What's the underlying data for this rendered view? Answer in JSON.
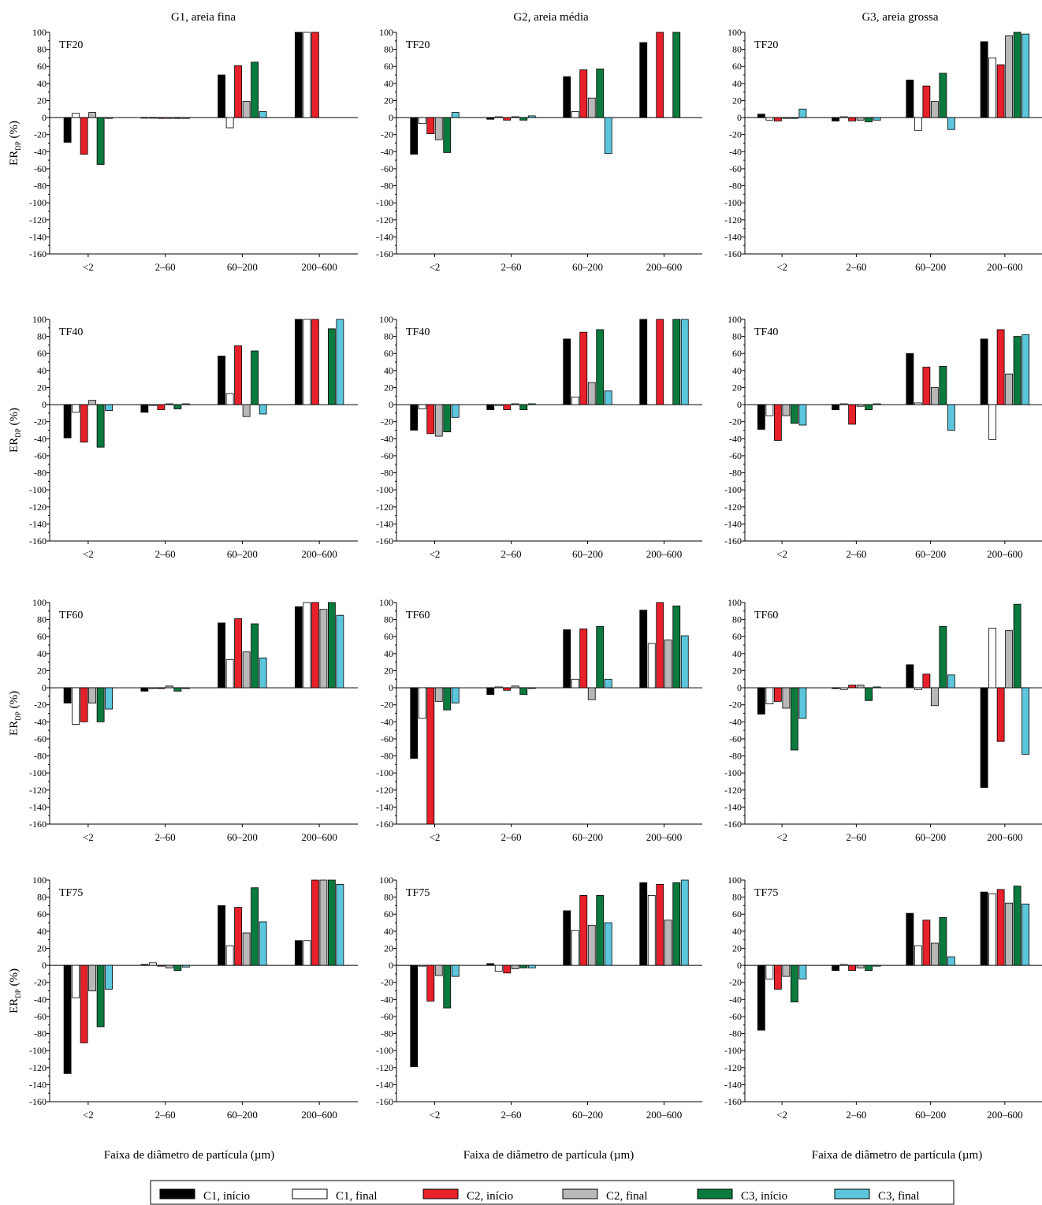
{
  "figure": {
    "column_titles": [
      "G1, areia fina",
      "G2, areia média",
      "G3, areia grossa"
    ],
    "xlabel": "Faixa de diâmetro de partícula (µm)",
    "ylabel_main": "ER",
    "ylabel_sub": "DP",
    "ylabel_unit": "(%)"
  },
  "legend": [
    {
      "label": "C1, início",
      "color": "#000000"
    },
    {
      "label": "C1, final",
      "color": "#ffffff"
    },
    {
      "label": "C2, início",
      "color": "#e8202a"
    },
    {
      "label": "C2, final",
      "color": "#b8b8b8"
    },
    {
      "label": "C3, início",
      "color": "#0a7a3e"
    },
    {
      "label": "C3, final",
      "color": "#5cc6dc"
    }
  ],
  "chart_data": [
    {
      "type": "bar",
      "title": "TF20",
      "column": "G1, areia fina",
      "categories": [
        "<2",
        "2–60",
        "60–200",
        "200–600"
      ],
      "ylim": [
        -160,
        100
      ],
      "series": [
        {
          "name": "C1, início",
          "values": [
            -29,
            0,
            50,
            100
          ]
        },
        {
          "name": "C1, final",
          "values": [
            5,
            0,
            -12,
            100
          ]
        },
        {
          "name": "C2, início",
          "values": [
            -43,
            -1,
            61,
            100
          ]
        },
        {
          "name": "C2, final",
          "values": [
            6,
            -1,
            19,
            null
          ]
        },
        {
          "name": "C3, início",
          "values": [
            -55,
            -1,
            65,
            null
          ]
        },
        {
          "name": "C3, final",
          "values": [
            -1,
            -1,
            7,
            null
          ]
        }
      ]
    },
    {
      "type": "bar",
      "title": "TF20",
      "column": "G2, areia média",
      "categories": [
        "<2",
        "2–60",
        "60–200",
        "200–600"
      ],
      "ylim": [
        -160,
        100
      ],
      "series": [
        {
          "name": "C1, início",
          "values": [
            -43,
            -2,
            48,
            88
          ]
        },
        {
          "name": "C1, final",
          "values": [
            -7,
            1,
            7,
            null
          ]
        },
        {
          "name": "C2, início",
          "values": [
            -19,
            -3,
            56,
            100
          ]
        },
        {
          "name": "C2, final",
          "values": [
            -26,
            1,
            23,
            null
          ]
        },
        {
          "name": "C3, início",
          "values": [
            -41,
            -3,
            57,
            100
          ]
        },
        {
          "name": "C3, final",
          "values": [
            6,
            2,
            -42,
            null
          ]
        }
      ]
    },
    {
      "type": "bar",
      "title": "TF20",
      "column": "G3, areia grossa",
      "categories": [
        "<2",
        "2–60",
        "60–200",
        "200–600"
      ],
      "ylim": [
        -160,
        100
      ],
      "series": [
        {
          "name": "C1, início",
          "values": [
            4,
            -4,
            44,
            89
          ]
        },
        {
          "name": "C1, final",
          "values": [
            -3,
            1,
            -15,
            70
          ]
        },
        {
          "name": "C2, início",
          "values": [
            -4,
            -4,
            37,
            62
          ]
        },
        {
          "name": "C2, final",
          "values": [
            -1,
            -3,
            19,
            96
          ]
        },
        {
          "name": "C3, início",
          "values": [
            -1,
            -5,
            52,
            100
          ]
        },
        {
          "name": "C3, final",
          "values": [
            10,
            -3,
            -14,
            98
          ]
        }
      ]
    },
    {
      "type": "bar",
      "title": "TF40",
      "column": "G1, areia fina",
      "categories": [
        "<2",
        "2–60",
        "60–200",
        "200–600"
      ],
      "ylim": [
        -160,
        100
      ],
      "series": [
        {
          "name": "C1, início",
          "values": [
            -39,
            -9,
            57,
            100
          ]
        },
        {
          "name": "C1, final",
          "values": [
            -9,
            -1,
            13,
            100
          ]
        },
        {
          "name": "C2, início",
          "values": [
            -44,
            -6,
            69,
            100
          ]
        },
        {
          "name": "C2, final",
          "values": [
            5,
            1,
            -14,
            null
          ]
        },
        {
          "name": "C3, início",
          "values": [
            -50,
            -5,
            63,
            89
          ]
        },
        {
          "name": "C3, final",
          "values": [
            -7,
            1,
            -11,
            100
          ]
        }
      ]
    },
    {
      "type": "bar",
      "title": "TF40",
      "column": "G2, areia média",
      "categories": [
        "<2",
        "2–60",
        "60–200",
        "200–600"
      ],
      "ylim": [
        -160,
        100
      ],
      "series": [
        {
          "name": "C1, início",
          "values": [
            -30,
            -6,
            77,
            100
          ]
        },
        {
          "name": "C1, final",
          "values": [
            -5,
            -1,
            9,
            null
          ]
        },
        {
          "name": "C2, início",
          "values": [
            -34,
            -6,
            85,
            100
          ]
        },
        {
          "name": "C2, final",
          "values": [
            -37,
            1,
            26,
            null
          ]
        },
        {
          "name": "C3, início",
          "values": [
            -32,
            -6,
            88,
            100
          ]
        },
        {
          "name": "C3, final",
          "values": [
            -15,
            1,
            16,
            100
          ]
        }
      ]
    },
    {
      "type": "bar",
      "title": "TF40",
      "column": "G3, areia grossa",
      "categories": [
        "<2",
        "2–60",
        "60–200",
        "200–600"
      ],
      "ylim": [
        -160,
        100
      ],
      "series": [
        {
          "name": "C1, início",
          "values": [
            -29,
            -6,
            60,
            77
          ]
        },
        {
          "name": "C1, final",
          "values": [
            -13,
            1,
            2,
            -41
          ]
        },
        {
          "name": "C2, início",
          "values": [
            -42,
            -23,
            44,
            88
          ]
        },
        {
          "name": "C2, final",
          "values": [
            -13,
            -2,
            20,
            36
          ]
        },
        {
          "name": "C3, início",
          "values": [
            -22,
            -6,
            45,
            80
          ]
        },
        {
          "name": "C3, final",
          "values": [
            -24,
            1,
            -30,
            82
          ]
        }
      ]
    },
    {
      "type": "bar",
      "title": "TF60",
      "column": "G1, areia fina",
      "categories": [
        "<2",
        "2–60",
        "60–200",
        "200–600"
      ],
      "ylim": [
        -160,
        100
      ],
      "series": [
        {
          "name": "C1, início",
          "values": [
            -18,
            -4,
            76,
            95
          ]
        },
        {
          "name": "C1, final",
          "values": [
            -43,
            -1,
            33,
            100
          ]
        },
        {
          "name": "C2, início",
          "values": [
            -40,
            -1,
            81,
            100
          ]
        },
        {
          "name": "C2, final",
          "values": [
            -18,
            2,
            42,
            92
          ]
        },
        {
          "name": "C3, início",
          "values": [
            -40,
            -4,
            75,
            100
          ]
        },
        {
          "name": "C3, final",
          "values": [
            -25,
            -1,
            35,
            85
          ]
        }
      ]
    },
    {
      "type": "bar",
      "title": "TF60",
      "column": "G2, areia média",
      "categories": [
        "<2",
        "2–60",
        "60–200",
        "200–600"
      ],
      "ylim": [
        -160,
        100
      ],
      "series": [
        {
          "name": "C1, início",
          "values": [
            -83,
            -8,
            68,
            91
          ]
        },
        {
          "name": "C1, final",
          "values": [
            -36,
            1,
            10,
            52
          ]
        },
        {
          "name": "C2, início",
          "values": [
            -160,
            -3,
            69,
            100
          ]
        },
        {
          "name": "C2, final",
          "values": [
            -16,
            2,
            -14,
            56
          ]
        },
        {
          "name": "C3, início",
          "values": [
            -26,
            -8,
            72,
            96
          ]
        },
        {
          "name": "C3, final",
          "values": [
            -18,
            -1,
            10,
            61
          ]
        }
      ]
    },
    {
      "type": "bar",
      "title": "TF60",
      "column": "G3, areia grossa",
      "categories": [
        "<2",
        "2–60",
        "60–200",
        "200–600"
      ],
      "ylim": [
        -160,
        100
      ],
      "series": [
        {
          "name": "C1, início",
          "values": [
            -31,
            -1,
            27,
            -117
          ]
        },
        {
          "name": "C1, final",
          "values": [
            -19,
            -2,
            -2,
            70
          ]
        },
        {
          "name": "C2, início",
          "values": [
            -16,
            3,
            16,
            -63
          ]
        },
        {
          "name": "C2, final",
          "values": [
            -24,
            3,
            -21,
            67
          ]
        },
        {
          "name": "C3, início",
          "values": [
            -73,
            -15,
            72,
            98
          ]
        },
        {
          "name": "C3, final",
          "values": [
            -36,
            1,
            15,
            -78
          ]
        }
      ]
    },
    {
      "type": "bar",
      "title": "TF75",
      "column": "G1, areia fina",
      "categories": [
        "<2",
        "2–60",
        "60–200",
        "200–600"
      ],
      "ylim": [
        -160,
        100
      ],
      "series": [
        {
          "name": "C1, início",
          "values": [
            -127,
            1,
            70,
            29
          ]
        },
        {
          "name": "C1, final",
          "values": [
            -38,
            3,
            23,
            29
          ]
        },
        {
          "name": "C2, início",
          "values": [
            -91,
            -1,
            68,
            100
          ]
        },
        {
          "name": "C2, final",
          "values": [
            -30,
            -3,
            38,
            100
          ]
        },
        {
          "name": "C3, início",
          "values": [
            -72,
            -6,
            91,
            100
          ]
        },
        {
          "name": "C3, final",
          "values": [
            -28,
            -2,
            51,
            95
          ]
        }
      ]
    },
    {
      "type": "bar",
      "title": "TF75",
      "column": "G2, areia média",
      "categories": [
        "<2",
        "2–60",
        "60–200",
        "200–600"
      ],
      "ylim": [
        -160,
        100
      ],
      "series": [
        {
          "name": "C1, início",
          "values": [
            -119,
            2,
            64,
            97
          ]
        },
        {
          "name": "C1, final",
          "values": [
            -1,
            -7,
            41,
            82
          ]
        },
        {
          "name": "C2, início",
          "values": [
            -42,
            -9,
            82,
            95
          ]
        },
        {
          "name": "C2, final",
          "values": [
            -12,
            -4,
            47,
            53
          ]
        },
        {
          "name": "C3, início",
          "values": [
            -50,
            -3,
            82,
            97
          ]
        },
        {
          "name": "C3, final",
          "values": [
            -13,
            -3,
            50,
            100
          ]
        }
      ]
    },
    {
      "type": "bar",
      "title": "TF75",
      "column": "G3, areia grossa",
      "categories": [
        "<2",
        "2–60",
        "60–200",
        "200–600"
      ],
      "ylim": [
        -160,
        100
      ],
      "series": [
        {
          "name": "C1, início",
          "values": [
            -76,
            -6,
            61,
            86
          ]
        },
        {
          "name": "C1, final",
          "values": [
            -16,
            1,
            23,
            84
          ]
        },
        {
          "name": "C2, início",
          "values": [
            -28,
            -6,
            53,
            89
          ]
        },
        {
          "name": "C2, final",
          "values": [
            -13,
            -3,
            26,
            73
          ]
        },
        {
          "name": "C3, início",
          "values": [
            -43,
            -6,
            56,
            93
          ]
        },
        {
          "name": "C3, final",
          "values": [
            -16,
            -1,
            10,
            72
          ]
        }
      ]
    }
  ]
}
